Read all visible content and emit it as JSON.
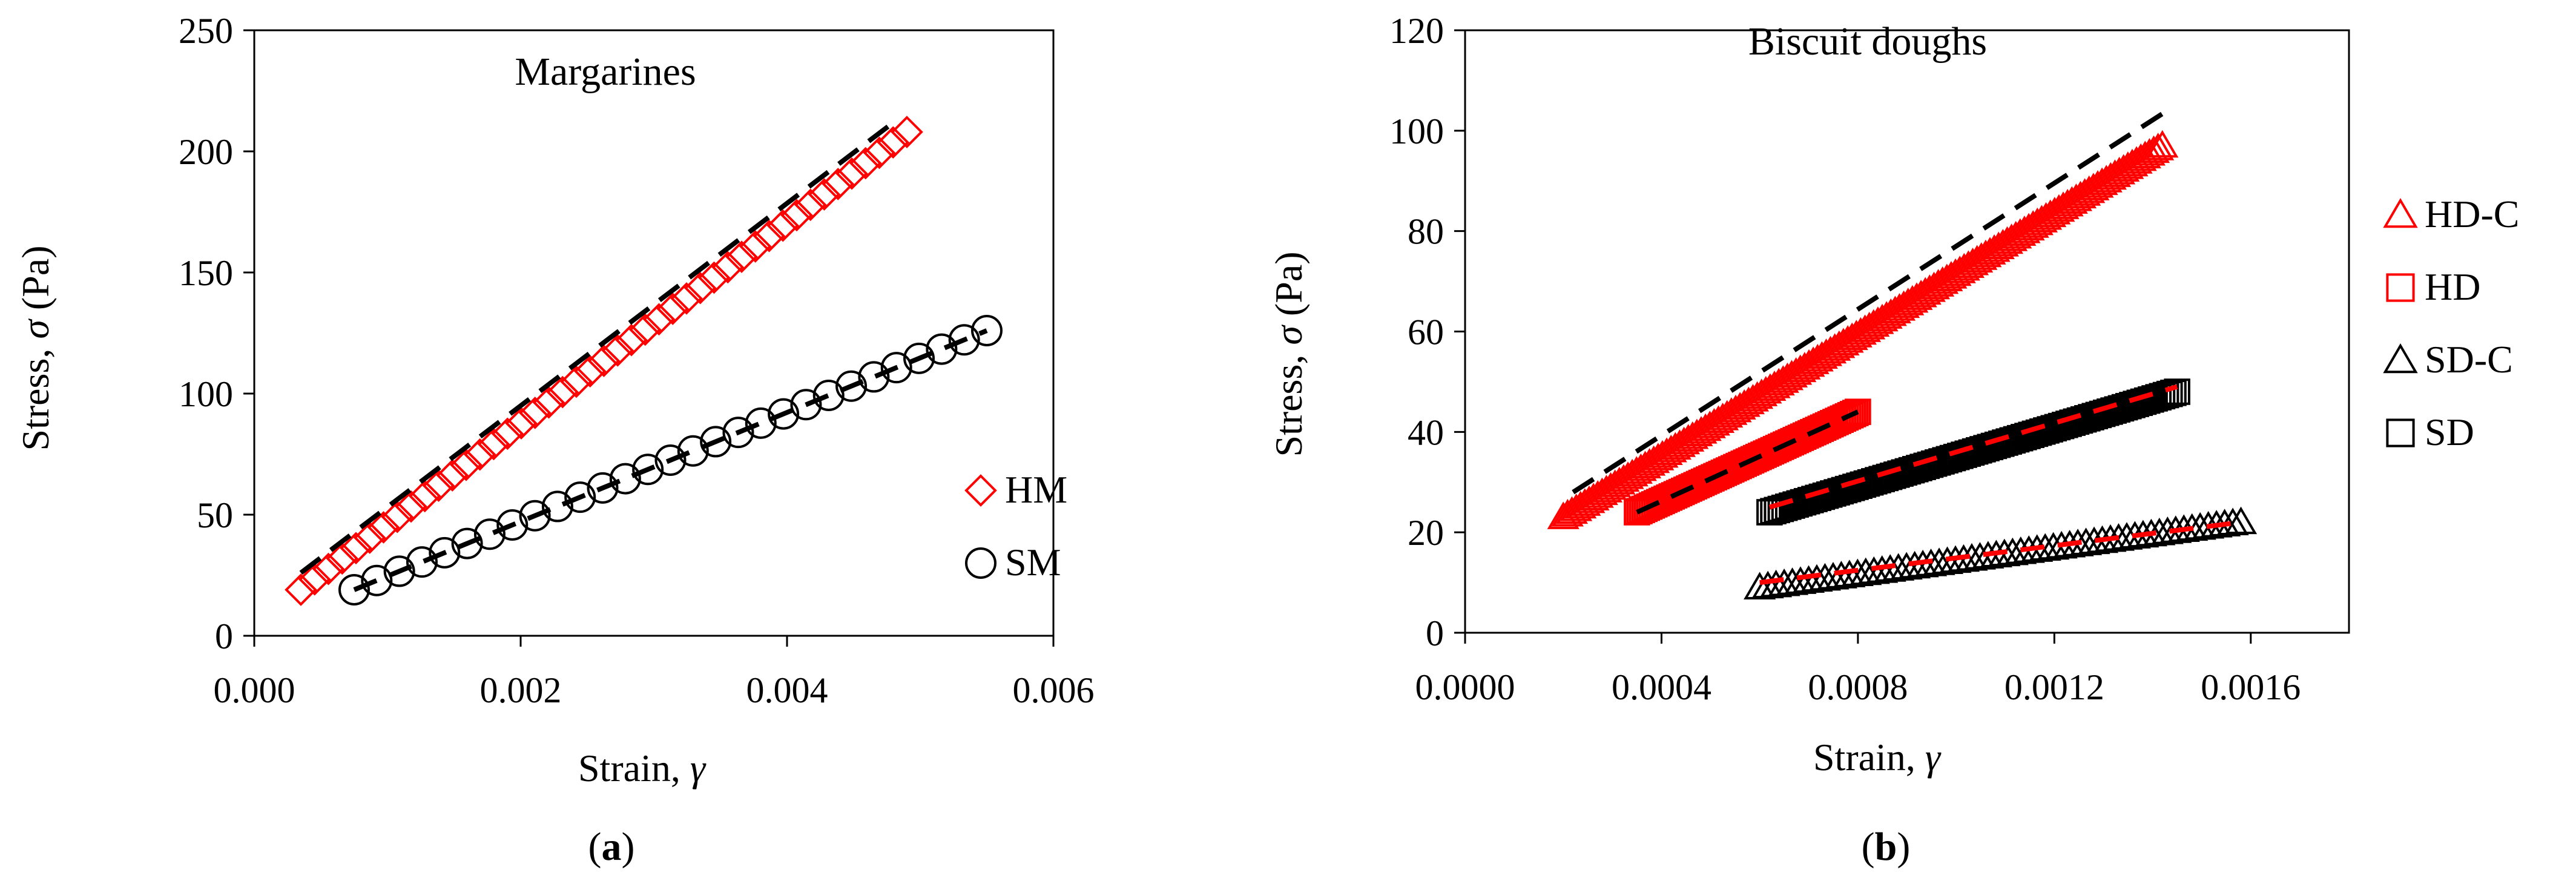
{
  "chart_data": [
    {
      "type": "scatter",
      "title": "Margarines",
      "panel_label": "a",
      "xlabel": "Strain, ",
      "xlabel_symbol": "γ",
      "ylabel": "Stress, ",
      "ylabel_symbol": "σ",
      "ylabel_unit": " (Pa)",
      "xlim": [
        0,
        0.006
      ],
      "ylim": [
        0,
        250
      ],
      "xticks": [
        0,
        0.002,
        0.004,
        0.006
      ],
      "xtick_labels": [
        "0.000",
        "0.002",
        "0.004",
        "0.006"
      ],
      "yticks": [
        0,
        50,
        100,
        150,
        200,
        250
      ],
      "ytick_labels": [
        "0",
        "50",
        "100",
        "150",
        "200",
        "250"
      ],
      "grid": false,
      "legend_position": "bottom-right",
      "series": [
        {
          "name": "HM",
          "marker": "diamond",
          "color": "#ff0000",
          "x_start": 0.00035,
          "x_end": 0.0049,
          "y_start": 19,
          "y_end": 208,
          "count": 45,
          "fit": {
            "x_start": 0.00035,
            "x_end": 0.0048,
            "y_start": 26,
            "y_end": 212,
            "color": "#000000"
          }
        },
        {
          "name": "SM",
          "marker": "circle",
          "color": "#000000",
          "x_start": 0.00075,
          "x_end": 0.0055,
          "y_start": 19,
          "y_end": 126,
          "count": 29,
          "fit": {
            "x_start": 0.00075,
            "x_end": 0.0055,
            "y_start": 19,
            "y_end": 126,
            "color": "#000000"
          }
        }
      ]
    },
    {
      "type": "scatter",
      "title": "Biscuit doughs",
      "panel_label": "b",
      "xlabel": "Strain, ",
      "xlabel_symbol": "γ",
      "ylabel": "Stress, ",
      "ylabel_symbol": "σ",
      "ylabel_unit": " (Pa)",
      "xlim": [
        0,
        0.0018
      ],
      "ylim": [
        0,
        120
      ],
      "xticks": [
        0,
        0.0004,
        0.0008,
        0.0012,
        0.0016
      ],
      "xtick_labels": [
        "0.0000",
        "0.0004",
        "0.0008",
        "0.0012",
        "0.0016"
      ],
      "yticks": [
        0,
        20,
        40,
        60,
        80,
        100,
        120
      ],
      "ytick_labels": [
        "0",
        "20",
        "40",
        "60",
        "80",
        "100",
        "120"
      ],
      "grid": false,
      "legend_position": "right",
      "series": [
        {
          "name": "HD-C",
          "marker": "triangle",
          "color": "#ff0000",
          "x_start": 0.0002,
          "x_end": 0.00142,
          "y_start": 23,
          "y_end": 97,
          "count": 140,
          "fit": {
            "x_start": 0.00022,
            "x_end": 0.00143,
            "y_start": 28,
            "y_end": 104,
            "color": "#000000"
          }
        },
        {
          "name": "HD",
          "marker": "square",
          "color": "#ff0000",
          "x_start": 0.00035,
          "x_end": 0.0008,
          "y_start": 24,
          "y_end": 44,
          "count": 90,
          "fit": {
            "x_start": 0.00035,
            "x_end": 0.0008,
            "y_start": 24,
            "y_end": 44,
            "color": "#000000"
          }
        },
        {
          "name": "SD-C",
          "marker": "triangle",
          "color": "#000000",
          "x_start": 0.0006,
          "x_end": 0.00158,
          "y_start": 9,
          "y_end": 22,
          "count": 60,
          "fit": {
            "x_start": 0.0006,
            "x_end": 0.00158,
            "y_start": 10,
            "y_end": 22,
            "color": "#ff0000"
          }
        },
        {
          "name": "SD",
          "marker": "square",
          "color": "#000000",
          "x_start": 0.00062,
          "x_end": 0.00145,
          "y_start": 24,
          "y_end": 48,
          "count": 110,
          "fit": {
            "x_start": 0.00062,
            "x_end": 0.00145,
            "y_start": 25,
            "y_end": 49,
            "color": "#ff0000"
          }
        }
      ]
    }
  ]
}
